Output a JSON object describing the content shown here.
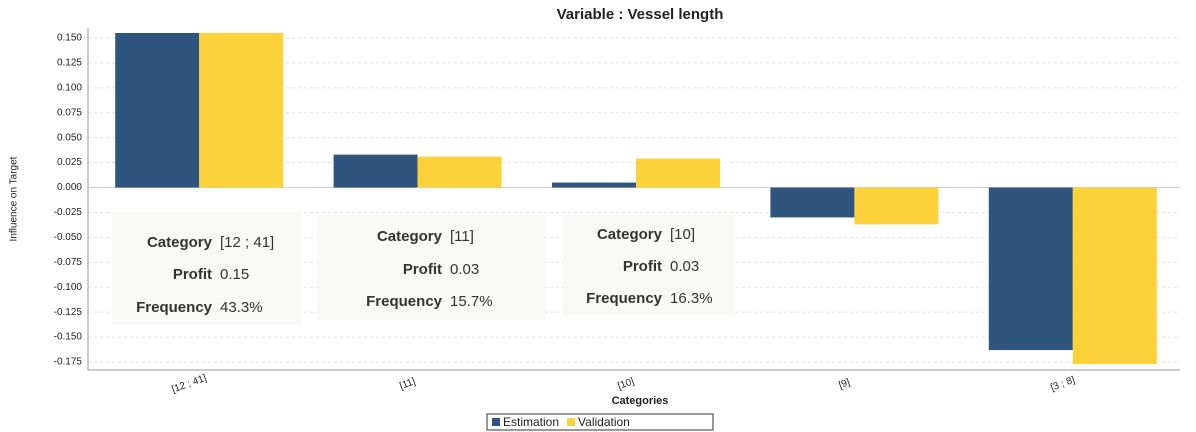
{
  "chart_data": {
    "type": "bar",
    "title": "Variable : Vessel length",
    "x_label": "Categories",
    "y_label": "Influence on Target",
    "categories": [
      "[12 ; 41]",
      "[11]",
      "[10]",
      "[9]",
      "[3 ; 8]"
    ],
    "series": [
      {
        "name": "Estimation",
        "color": "#2f547e",
        "values": [
          0.155,
          0.033,
          0.005,
          -0.03,
          -0.163
        ]
      },
      {
        "name": "Validation",
        "color": "#fdd13a",
        "values": [
          0.155,
          0.031,
          0.029,
          -0.037,
          -0.177
        ]
      }
    ],
    "ylim": [
      -0.183,
      0.16
    ],
    "yticks": [
      {
        "value": 0.15,
        "label": "0.150"
      },
      {
        "value": 0.125,
        "label": "0.125"
      },
      {
        "value": 0.1,
        "label": "0.100"
      },
      {
        "value": 0.075,
        "label": "0.075"
      },
      {
        "value": 0.05,
        "label": "0.050"
      },
      {
        "value": 0.025,
        "label": "0.025"
      },
      {
        "value": 0,
        "label": "0.000"
      },
      {
        "value": -0.025,
        "label": "-0.025"
      },
      {
        "value": -0.05,
        "label": "-0.050"
      },
      {
        "value": -0.075,
        "label": "-0.075"
      },
      {
        "value": -0.1,
        "label": "-0.100"
      },
      {
        "value": -0.125,
        "label": "-0.125"
      },
      {
        "value": -0.15,
        "label": "-0.150"
      },
      {
        "value": -0.175,
        "label": "-0.175"
      }
    ],
    "grid": true,
    "legend": "bottom",
    "tooltips": [
      {
        "rows": [
          [
            "Category",
            "[12 ; 41]"
          ],
          [
            "Profit",
            "0.15"
          ],
          [
            "Frequency",
            "43.3%"
          ]
        ]
      },
      {
        "rows": [
          [
            "Category",
            "[11]"
          ],
          [
            "Profit",
            "0.03"
          ],
          [
            "Frequency",
            "15.7%"
          ]
        ]
      },
      {
        "rows": [
          [
            "Category",
            "[10]"
          ],
          [
            "Profit",
            "0.03"
          ],
          [
            "Frequency",
            "16.3%"
          ]
        ]
      }
    ]
  }
}
